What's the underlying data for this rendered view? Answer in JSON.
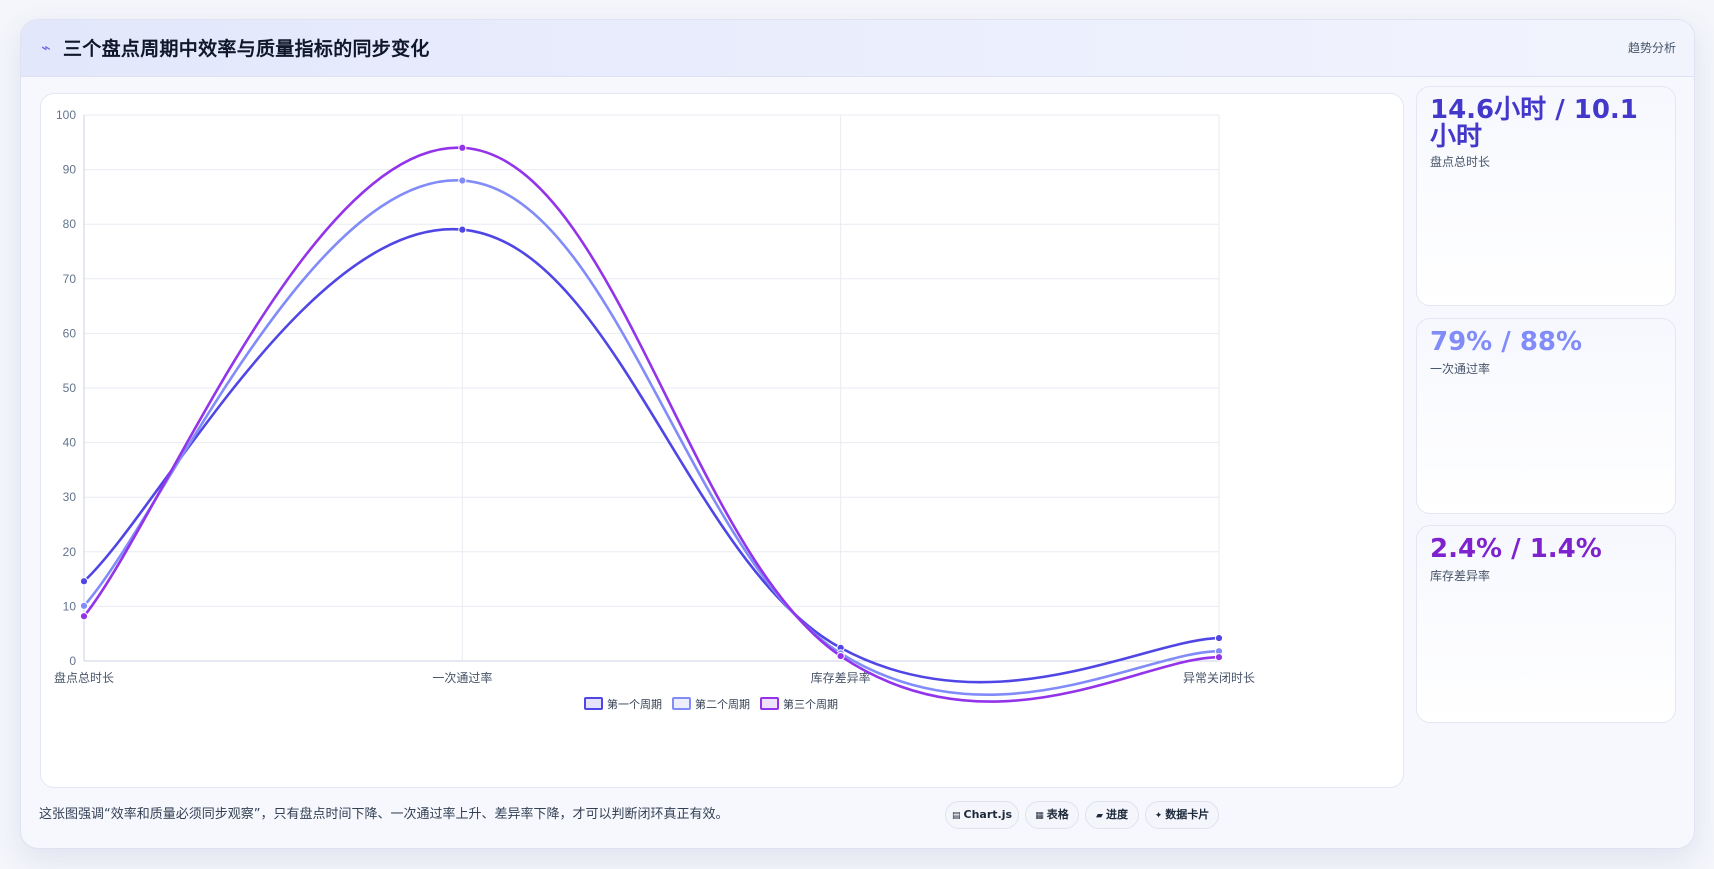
{
  "header": {
    "icon": "trend-spark-icon",
    "title": "三个盘点周期中效率与质量指标的同步变化",
    "badge": "趋势分析"
  },
  "kpis": [
    {
      "value": "14.6小时 / 10.1小时",
      "label": "盘点总时长",
      "color": "#4338ca"
    },
    {
      "value": "79% / 88%",
      "label": "一次通过率",
      "color": "#818cf8"
    },
    {
      "value": "2.4% / 1.4%",
      "label": "库存差异率",
      "color": "#7e22ce"
    }
  ],
  "footer": {
    "note": "这张图强调“效率和质量必须同步观察”，只有盘点时间下降、一次通过率上升、差异率下降，才可以判断闭环真正有效。",
    "tags": [
      {
        "icon": "chart-icon",
        "glyph": "▤",
        "label": "Chart.js"
      },
      {
        "icon": "table-icon",
        "glyph": "▦",
        "label": "表格"
      },
      {
        "icon": "progress-icon",
        "glyph": "▰",
        "label": "进度"
      },
      {
        "icon": "sparkle-icon",
        "glyph": "✦",
        "label": "数据卡片"
      }
    ]
  },
  "chart_data": {
    "type": "line",
    "categories": [
      "盘点总时长",
      "一次通过率",
      "库存差异率",
      "异常关闭时长"
    ],
    "series": [
      {
        "name": "第一个周期",
        "values": [
          14.6,
          79,
          2.4,
          4.2
        ],
        "color": "#4f46e5"
      },
      {
        "name": "第二个周期",
        "values": [
          10.1,
          88,
          1.4,
          1.8
        ],
        "color": "#818cf8"
      },
      {
        "name": "第三个周期",
        "values": [
          8.2,
          94,
          0.9,
          0.7
        ],
        "color": "#9333ea"
      }
    ],
    "ylim": [
      0,
      100
    ],
    "yticks": [
      0,
      10,
      20,
      30,
      40,
      50,
      60,
      70,
      80,
      90,
      100
    ],
    "grid": true,
    "legend": "bottom",
    "smooth": true
  }
}
